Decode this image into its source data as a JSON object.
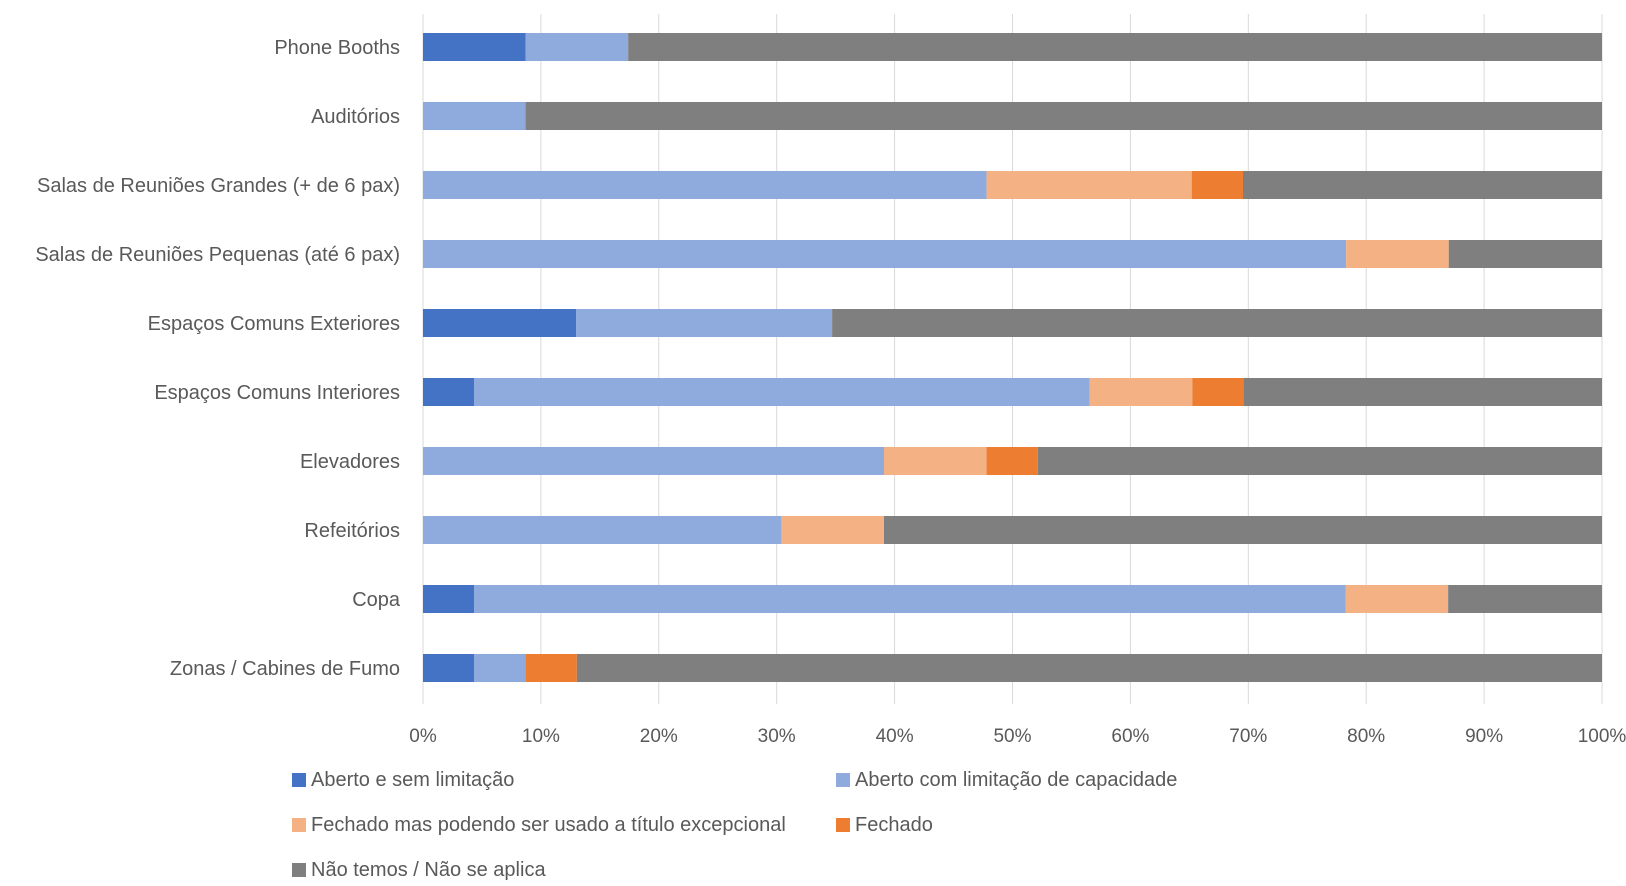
{
  "chart_data": {
    "type": "bar",
    "orientation": "horizontal",
    "stacked": "percent",
    "categories": [
      "Phone Booths",
      "Auditórios",
      "Salas de Reuniões Grandes (+ de 6 pax)",
      "Salas de Reuniões Pequenas (até 6 pax)",
      "Espaços Comuns Exteriores",
      "Espaços Comuns Interiores",
      "Elevadores",
      "Refeitórios",
      "Copa",
      "Zonas / Cabines de Fumo"
    ],
    "series": [
      {
        "name": "Aberto e sem limitação",
        "color": "#4472C4",
        "values": [
          8.7,
          0,
          0,
          0,
          13.0,
          4.35,
          0,
          0,
          4.35,
          4.35
        ]
      },
      {
        "name": "Aberto com limitação de capacidade",
        "color": "#8FAADC",
        "values": [
          8.7,
          8.7,
          47.8,
          78.3,
          21.7,
          52.2,
          39.1,
          30.4,
          73.9,
          4.35
        ]
      },
      {
        "name": "Fechado mas podendo ser usado a título excepcional",
        "color": "#F4B183",
        "values": [
          0,
          0,
          17.4,
          8.7,
          0,
          8.7,
          8.7,
          8.7,
          8.7,
          0
        ]
      },
      {
        "name": "Fechado",
        "color": "#ED7D31",
        "values": [
          0,
          0,
          4.35,
          0,
          0,
          4.35,
          4.35,
          0,
          0,
          4.35
        ]
      },
      {
        "name": "Não temos / Não se aplica",
        "color": "#7F7F7F",
        "values": [
          82.6,
          91.3,
          30.45,
          13.0,
          65.3,
          30.4,
          47.85,
          60.9,
          13.05,
          86.95
        ]
      }
    ],
    "xlim": [
      0,
      100
    ],
    "xticks": [
      "0%",
      "10%",
      "20%",
      "30%",
      "40%",
      "50%",
      "60%",
      "70%",
      "80%",
      "90%",
      "100%"
    ],
    "grid": true,
    "legend_position": "bottom"
  }
}
